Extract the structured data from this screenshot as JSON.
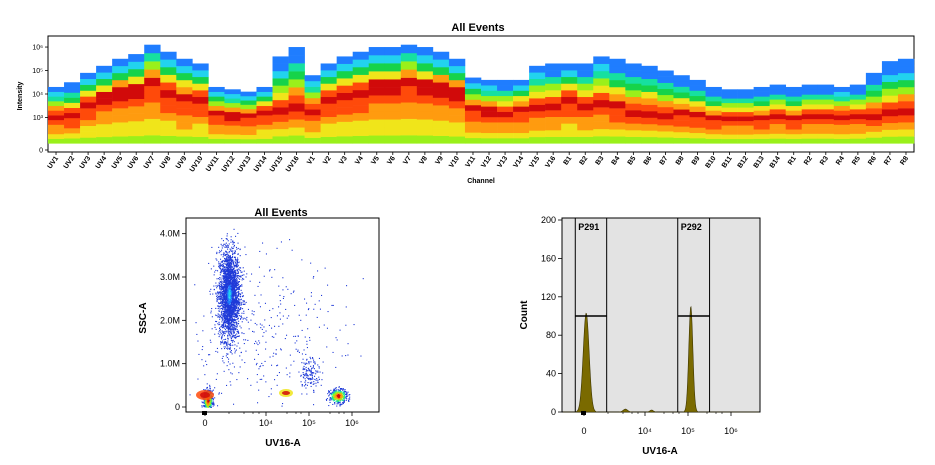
{
  "colors": {
    "spectrum": [
      "#1d3fd8",
      "#1f7dff",
      "#22d3ee",
      "#16e0a0",
      "#16d34a",
      "#9af01a",
      "#f0e51a",
      "#ff9b0f",
      "#ff4a0a",
      "#d10a0a"
    ],
    "histogram_fill": "#7a6a00",
    "histogram_gate_bg": "#e3e3e3",
    "scatter_dot": "#1f3ad8"
  },
  "chart_data": [
    {
      "type": "heatmap",
      "title": "All Events",
      "xlabel": "Channel",
      "ylabel": "Intensity",
      "y_tick_labels": [
        "0",
        "10³",
        "10⁴",
        "10⁵",
        "10⁶"
      ],
      "categories": [
        "UV1",
        "UV2",
        "UV3",
        "UV4",
        "UV5",
        "UV6",
        "UV7",
        "UV8",
        "UV9",
        "UV10",
        "UV11",
        "UV12",
        "UV13",
        "UV14",
        "UV15",
        "UV16",
        "V1",
        "V2",
        "V3",
        "V4",
        "V5",
        "V6",
        "V7",
        "V8",
        "V9",
        "V10",
        "V11",
        "V12",
        "V13",
        "V14",
        "V15",
        "V16",
        "B1",
        "B2",
        "B3",
        "B4",
        "B5",
        "B6",
        "B7",
        "B8",
        "B9",
        "B10",
        "B11",
        "B12",
        "B13",
        "B14",
        "R1",
        "R2",
        "R3",
        "R4",
        "R5",
        "R6",
        "R7",
        "R8"
      ],
      "upper_extent": [
        2.6,
        2.8,
        3.2,
        3.5,
        3.8,
        4.0,
        4.4,
        4.1,
        3.8,
        3.6,
        2.6,
        2.5,
        2.4,
        2.6,
        3.9,
        4.3,
        3.1,
        3.6,
        3.9,
        4.1,
        4.3,
        4.3,
        4.4,
        4.3,
        4.1,
        3.8,
        3.0,
        2.9,
        2.9,
        2.9,
        3.5,
        3.6,
        3.6,
        3.6,
        3.9,
        3.8,
        3.6,
        3.5,
        3.3,
        3.1,
        2.9,
        2.6,
        2.5,
        2.5,
        2.6,
        2.7,
        2.6,
        2.7,
        2.7,
        2.6,
        2.7,
        3.2,
        3.7,
        3.8
      ],
      "peak_level": [
        1.4,
        1.4,
        1.9,
        2.2,
        2.4,
        2.5,
        2.9,
        2.5,
        2.2,
        2.1,
        1.5,
        1.4,
        1.4,
        1.6,
        1.6,
        1.9,
        1.7,
        2.2,
        2.3,
        2.5,
        2.7,
        2.7,
        2.9,
        2.7,
        2.6,
        2.4,
        1.7,
        1.6,
        1.5,
        1.7,
        1.8,
        1.8,
        2.1,
        1.8,
        2.0,
        1.8,
        1.6,
        1.6,
        1.5,
        1.5,
        1.4,
        1.3,
        1.3,
        1.3,
        1.3,
        1.4,
        1.3,
        1.4,
        1.4,
        1.4,
        1.4,
        1.4,
        1.5,
        1.6
      ],
      "ylim": [
        0,
        4.6
      ]
    },
    {
      "type": "scatter",
      "title": "All Events",
      "xlabel": "UV16-A",
      "ylabel": "SSC-A",
      "x_tick_labels": [
        "0",
        "10⁴",
        "10⁵",
        "10⁶"
      ],
      "y_tick_labels": [
        "0",
        "1.0M",
        "2.0M",
        "3.0M",
        "4.0M"
      ],
      "ylim": [
        0,
        4200000
      ],
      "populations": [
        {
          "x_center": 0.55,
          "y_center": 2600000,
          "x_spread": 0.12,
          "y_spread": 520000,
          "count": 2600
        },
        {
          "x_center": 0.06,
          "y_center": 150000,
          "x_spread": 0.05,
          "y_spread": 120000,
          "count": 700
        },
        {
          "x_center": 3.05,
          "y_center": 260000,
          "x_spread": 0.1,
          "y_spread": 80000,
          "count": 420
        },
        {
          "x_center": 2.4,
          "y_center": 800000,
          "x_spread": 0.12,
          "y_spread": 180000,
          "count": 130
        },
        {
          "x_center": 1.2,
          "y_center": 1500000,
          "x_spread": 1.0,
          "y_spread": 1100000,
          "count": 380
        }
      ]
    },
    {
      "type": "area",
      "title": "",
      "xlabel": "UV16-A",
      "ylabel": "Count",
      "x_tick_labels": [
        "0",
        "10⁴",
        "10⁵",
        "10⁶"
      ],
      "y_tick_labels": [
        "0",
        "40",
        "80",
        "120",
        "160",
        "200"
      ],
      "ylim": [
        0,
        200
      ],
      "peaks": [
        {
          "x_center": 0.05,
          "height": 103,
          "width": 0.16
        },
        {
          "x_center": 2.45,
          "height": 110,
          "width": 0.11
        }
      ],
      "gates": [
        {
          "label": "P291",
          "x_start": -0.2,
          "x_end": 0.52,
          "level": 100
        },
        {
          "label": "P292",
          "x_start": 2.15,
          "x_end": 2.88,
          "level": 100
        }
      ]
    }
  ]
}
